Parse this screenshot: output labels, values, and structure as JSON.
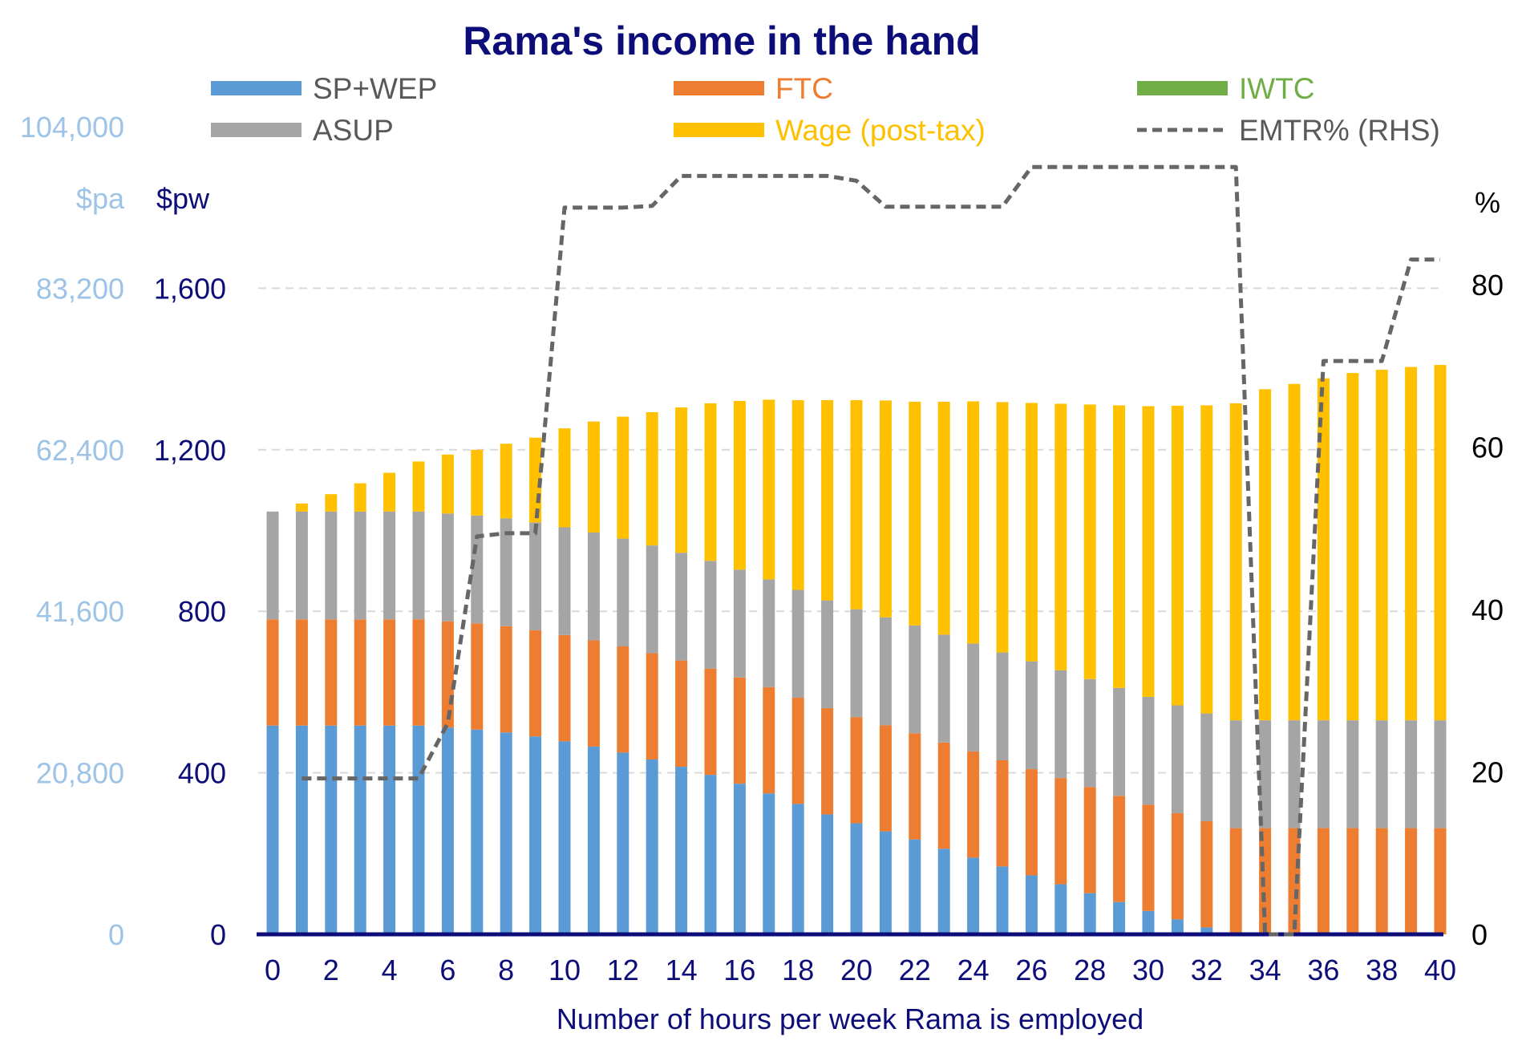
{
  "chart_data": {
    "type": "bar",
    "stacked": true,
    "title": "Rama's income in the hand",
    "xlabel": "Number of hours per week Rama is employed",
    "x": [
      0,
      1,
      2,
      3,
      4,
      5,
      6,
      7,
      8,
      9,
      10,
      11,
      12,
      13,
      14,
      15,
      16,
      17,
      18,
      19,
      20,
      21,
      22,
      23,
      24,
      25,
      26,
      27,
      28,
      29,
      30,
      31,
      32,
      33,
      34,
      35,
      36,
      37,
      38,
      39,
      40
    ],
    "x_ticks": [
      "0",
      "2",
      "4",
      "6",
      "8",
      "10",
      "12",
      "14",
      "16",
      "18",
      "20",
      "22",
      "24",
      "26",
      "28",
      "30",
      "32",
      "34",
      "36",
      "38",
      "40"
    ],
    "left_axis": {
      "unit": "$pw",
      "secondary_unit": "$pa",
      "ylim": [
        0,
        2000
      ],
      "ticks": [
        {
          "value": 0,
          "pw": "0",
          "pa": "0"
        },
        {
          "value": 400,
          "pw": "400",
          "pa": "20,800"
        },
        {
          "value": 800,
          "pw": "800",
          "pa": "41,600"
        },
        {
          "value": 1200,
          "pw": "1,200",
          "pa": "62,400"
        },
        {
          "value": 1600,
          "pw": "1,600",
          "pa": "83,200"
        },
        {
          "value": 2000,
          "pw": "",
          "pa": "104,000"
        }
      ]
    },
    "right_axis": {
      "unit": "%",
      "ylim": [
        0,
        100
      ],
      "ticks": [
        {
          "value": 0,
          "label": "0"
        },
        {
          "value": 20,
          "label": "20"
        },
        {
          "value": 40,
          "label": "40"
        },
        {
          "value": 60,
          "label": "60"
        },
        {
          "value": 80,
          "label": "80"
        }
      ]
    },
    "grid": "horizontal dashed",
    "legend_position": "top",
    "series": [
      {
        "name": "SP+WEP",
        "kind": "bar",
        "color": "#5b9bd5",
        "legend_text_color": "#595959",
        "values": [
          517,
          517,
          517,
          517,
          517,
          517,
          512,
          507,
          500,
          490,
          478,
          465,
          450,
          433,
          415,
          395,
          373,
          349,
          323,
          297,
          275,
          255,
          235,
          212,
          190,
          168,
          146,
          124,
          102,
          80,
          58,
          37,
          17,
          0,
          0,
          0,
          0,
          0,
          0,
          0,
          0
        ]
      },
      {
        "name": "FTC",
        "kind": "bar",
        "color": "#ed7d31",
        "legend_text_color": "#ed7d31",
        "values": [
          263,
          263,
          263,
          263,
          263,
          263,
          263,
          263,
          263,
          263,
          263,
          263,
          263,
          263,
          263,
          263,
          263,
          263,
          263,
          263,
          263,
          263,
          263,
          263,
          263,
          263,
          263,
          263,
          263,
          263,
          263,
          263,
          263,
          263,
          263,
          263,
          263,
          263,
          263,
          263,
          263
        ]
      },
      {
        "name": "IWTC",
        "kind": "bar",
        "color": "#70ad47",
        "legend_text_color": "#70ad47",
        "values": [
          0,
          0,
          0,
          0,
          0,
          0,
          0,
          0,
          0,
          0,
          0,
          0,
          0,
          0,
          0,
          0,
          0,
          0,
          0,
          0,
          0,
          0,
          0,
          0,
          0,
          0,
          0,
          0,
          0,
          0,
          0,
          0,
          0,
          0,
          0,
          0,
          0,
          0,
          0,
          0,
          0
        ]
      },
      {
        "name": "ASUP",
        "kind": "bar",
        "color": "#a5a5a5",
        "legend_text_color": "#595959",
        "values": [
          267,
          267,
          267,
          267,
          267,
          267,
          267,
          267,
          267,
          267,
          267,
          267,
          267,
          267,
          267,
          267,
          267,
          267,
          267,
          267,
          267,
          267,
          267,
          267,
          267,
          267,
          267,
          267,
          267,
          267,
          267,
          267,
          267,
          267,
          267,
          267,
          267,
          267,
          267,
          267,
          267
        ]
      },
      {
        "name": "Wage (post-tax)",
        "kind": "bar",
        "color": "#ffc000",
        "legend_text_color": "#ffc000",
        "values": [
          0,
          20,
          43,
          70,
          96,
          124,
          146,
          163,
          185,
          210,
          245,
          275,
          302,
          330,
          360,
          390,
          418,
          445,
          470,
          496,
          518,
          537,
          554,
          577,
          600,
          620,
          640,
          660,
          680,
          700,
          720,
          742,
          763,
          785,
          820,
          833,
          847,
          860,
          868,
          875,
          880
        ]
      },
      {
        "name": "EMTR% (RHS)",
        "kind": "line",
        "dashed": true,
        "color": "#666666",
        "legend_text_color": "#595959",
        "axis": "right",
        "values": [
          null,
          19.2,
          19.2,
          19.2,
          19.2,
          19.2,
          26,
          49,
          49.4,
          49.4,
          89.5,
          89.5,
          89.5,
          89.7,
          93.4,
          93.4,
          93.4,
          93.4,
          93.4,
          93.4,
          92.8,
          89.6,
          89.6,
          89.6,
          89.6,
          89.6,
          94.5,
          94.5,
          94.5,
          94.5,
          94.5,
          94.5,
          94.5,
          94.5,
          0,
          0,
          70.6,
          70.6,
          70.6,
          83.1,
          83.1
        ]
      }
    ]
  }
}
